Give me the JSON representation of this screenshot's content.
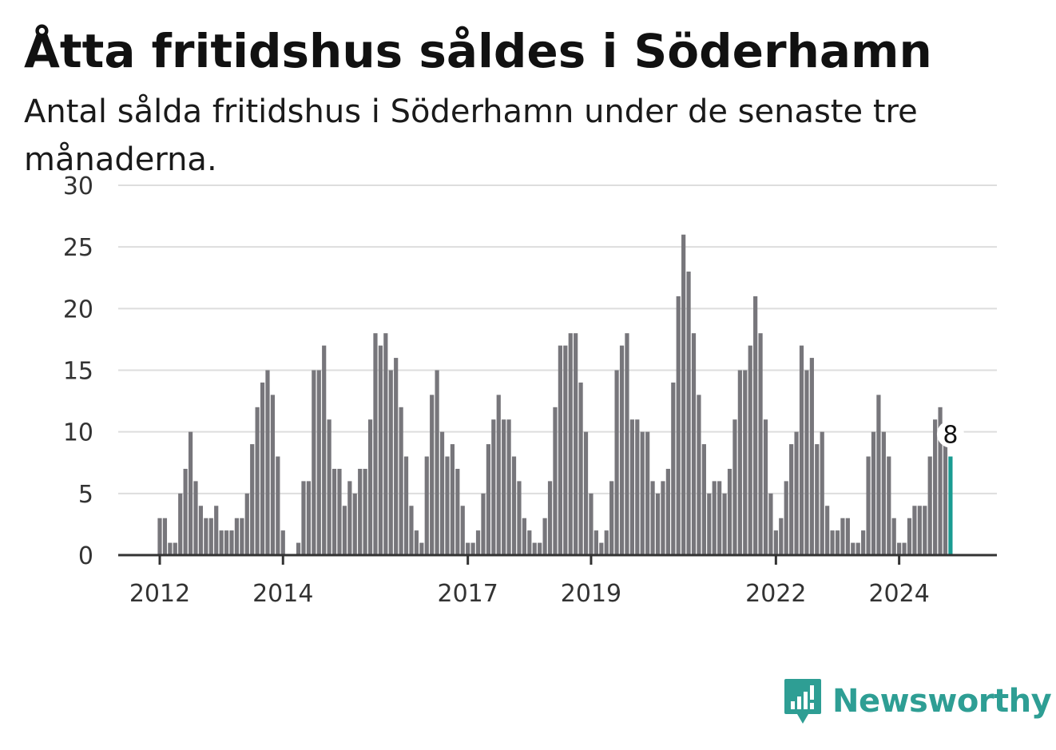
{
  "title": "Åtta fritidshus såldes i Söderhamn",
  "subtitle": "Antal sålda fritidshus i Söderhamn under de senaste tre månaderna.",
  "brand": {
    "name": "Newsworthy",
    "color": "#2e9e94"
  },
  "chart_data": {
    "type": "bar",
    "title": "Åtta fritidshus såldes i Söderhamn",
    "subtitle": "Antal sålda fritidshus i Söderhamn under de senaste tre månaderna.",
    "xlabel": "",
    "ylabel": "",
    "ylim": [
      0,
      30
    ],
    "yticks": [
      0,
      5,
      10,
      15,
      20,
      25,
      30
    ],
    "xticks": [
      "2012",
      "2014",
      "2017",
      "2019",
      "2022",
      "2024"
    ],
    "start_month": "2012-01",
    "grid": true,
    "bar_color": "#77767b",
    "highlight_color": "#1a9c92",
    "highlight_label": "8",
    "values": [
      3,
      3,
      1,
      1,
      5,
      7,
      10,
      6,
      4,
      3,
      3,
      4,
      2,
      2,
      2,
      3,
      3,
      5,
      9,
      12,
      14,
      15,
      13,
      8,
      2,
      0,
      0,
      1,
      6,
      6,
      15,
      15,
      17,
      11,
      7,
      7,
      4,
      6,
      5,
      7,
      7,
      11,
      18,
      17,
      18,
      15,
      16,
      12,
      8,
      4,
      2,
      1,
      8,
      13,
      15,
      10,
      8,
      9,
      7,
      4,
      1,
      1,
      2,
      5,
      9,
      11,
      13,
      11,
      11,
      8,
      6,
      3,
      2,
      1,
      1,
      3,
      6,
      12,
      17,
      17,
      18,
      18,
      14,
      10,
      5,
      2,
      1,
      2,
      6,
      15,
      17,
      18,
      11,
      11,
      10,
      10,
      6,
      5,
      6,
      7,
      14,
      21,
      26,
      23,
      18,
      13,
      9,
      5,
      6,
      6,
      5,
      7,
      11,
      15,
      15,
      17,
      21,
      18,
      11,
      5,
      2,
      3,
      6,
      9,
      10,
      17,
      15,
      16,
      9,
      10,
      4,
      2,
      2,
      3,
      3,
      1,
      1,
      2,
      8,
      10,
      13,
      10,
      8,
      3,
      1,
      1,
      3,
      4,
      4,
      4,
      8,
      11,
      12,
      9,
      8
    ]
  }
}
